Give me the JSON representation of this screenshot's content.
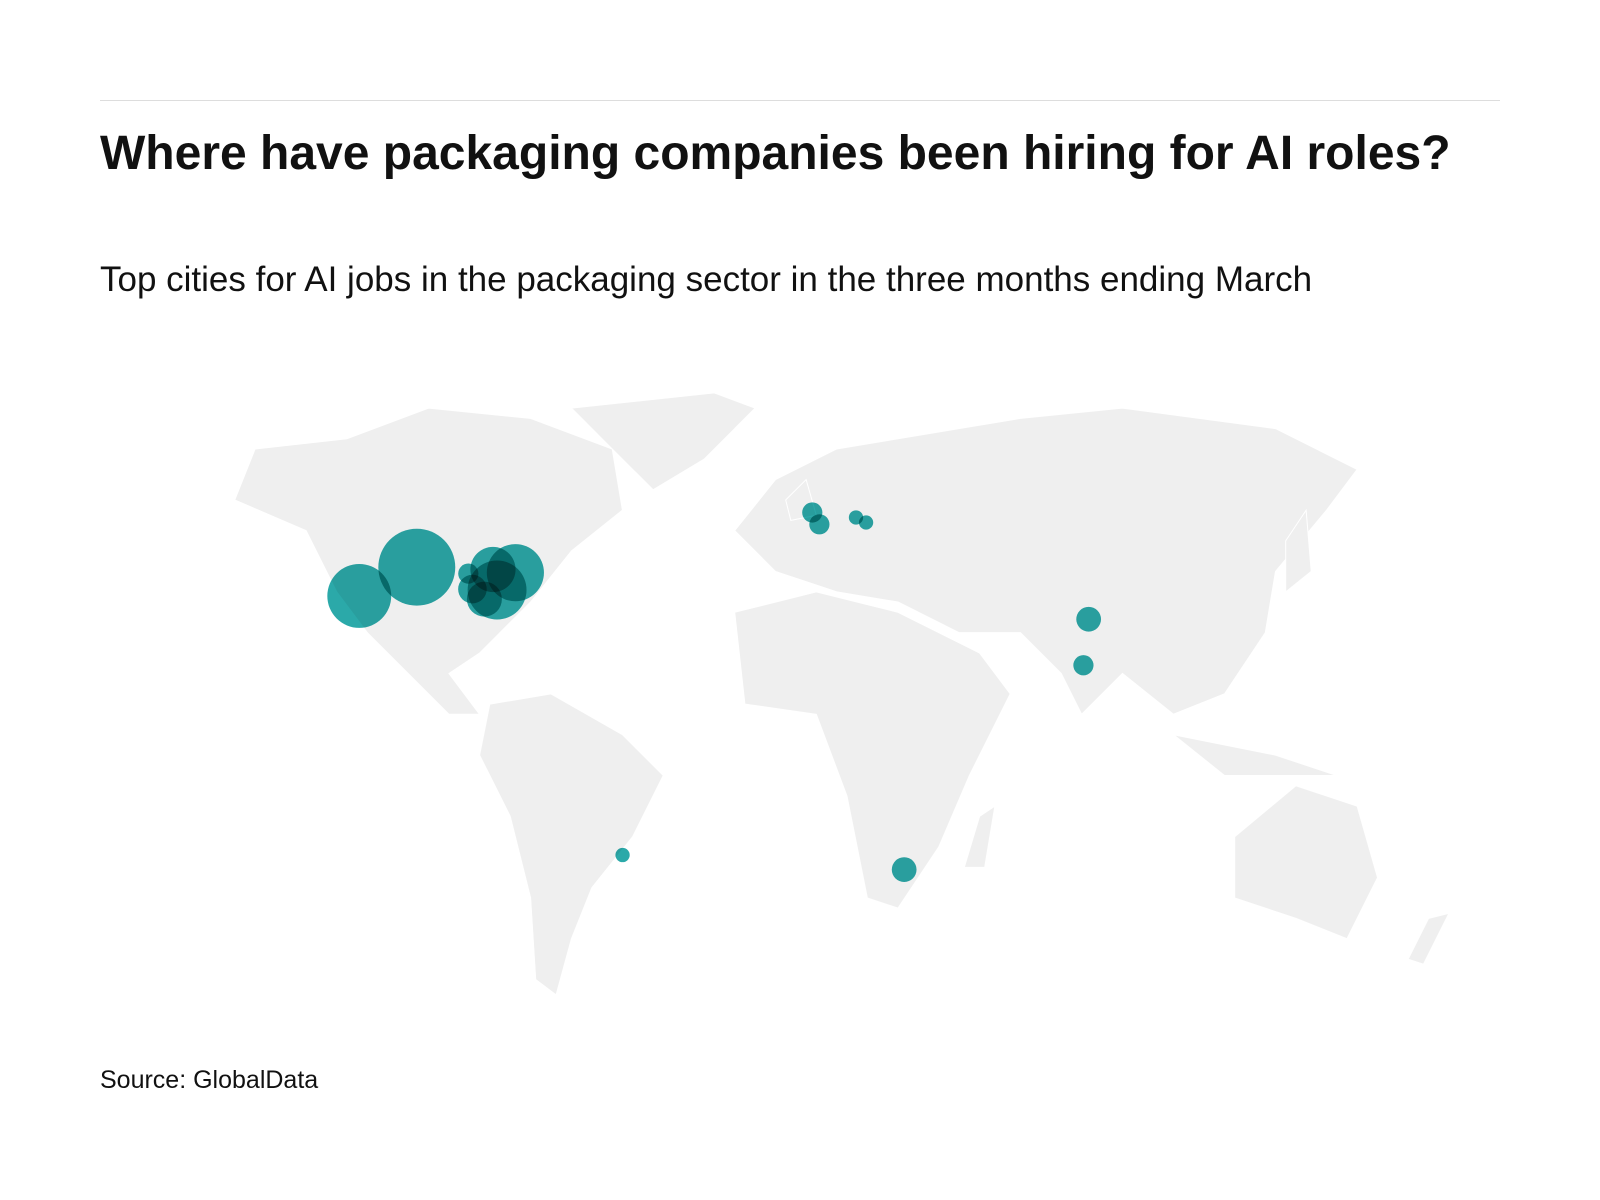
{
  "header": {
    "title": "Where have packaging companies been hiring for AI roles?",
    "subtitle": "Top cities for AI jobs in the packaging sector in the three months ending March"
  },
  "map": {
    "color": "#14a0a0",
    "bubbles": [
      {
        "lon": -102.5,
        "lat": 40.3,
        "value": 29
      },
      {
        "lon": -117.9,
        "lat": 34.0,
        "value": 20
      },
      {
        "lon": -81.0,
        "lat": 35.3,
        "value": 17
      },
      {
        "lon": -76.1,
        "lat": 39.1,
        "value": 16
      },
      {
        "lon": -82.1,
        "lat": 39.8,
        "value": 10
      },
      {
        "lon": -84.4,
        "lat": 33.3,
        "value": 6
      },
      {
        "lon": -87.6,
        "lat": 35.5,
        "value": 4
      },
      {
        "lon": -88.7,
        "lat": 38.9,
        "value": 2
      },
      {
        "lon": 3.4,
        "lat": 52.3,
        "value": 2
      },
      {
        "lon": 5.3,
        "lat": 49.7,
        "value": 2
      },
      {
        "lon": 15.1,
        "lat": 51.2,
        "value": 1
      },
      {
        "lon": 17.8,
        "lat": 50.1,
        "value": 1
      },
      {
        "lon": 77.4,
        "lat": 28.9,
        "value": 3
      },
      {
        "lon": 76.0,
        "lat": 18.8,
        "value": 2
      },
      {
        "lon": -47.4,
        "lat": -22.8,
        "value": 1
      },
      {
        "lon": 28.0,
        "lat": -26.0,
        "value": 3
      }
    ]
  },
  "footer": {
    "source": "Source: GlobalData"
  }
}
